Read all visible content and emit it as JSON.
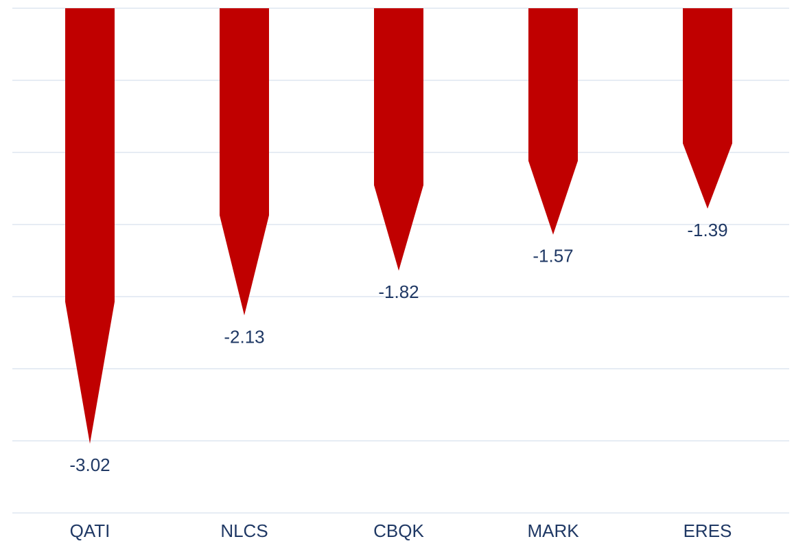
{
  "chart_data": {
    "type": "bar",
    "orientation": "vertical",
    "bar_shape": "arrow-down",
    "categories": [
      "QATI",
      "NLCS",
      "CBQK",
      "MARK",
      "ERES"
    ],
    "values": [
      -3.02,
      -2.13,
      -1.82,
      -1.57,
      -1.39
    ],
    "value_labels": [
      "-3.02",
      "-2.13",
      "-1.82",
      "-1.57",
      "-1.39"
    ],
    "title": "",
    "xlabel": "",
    "ylabel": "",
    "ylim": [
      -3.5,
      0
    ],
    "y_gridline_step": 0.5,
    "grid": true,
    "legend": "none",
    "colors": {
      "bar": "#c00000",
      "label_text": "#1f3864",
      "gridline": "#dde6f0"
    }
  }
}
